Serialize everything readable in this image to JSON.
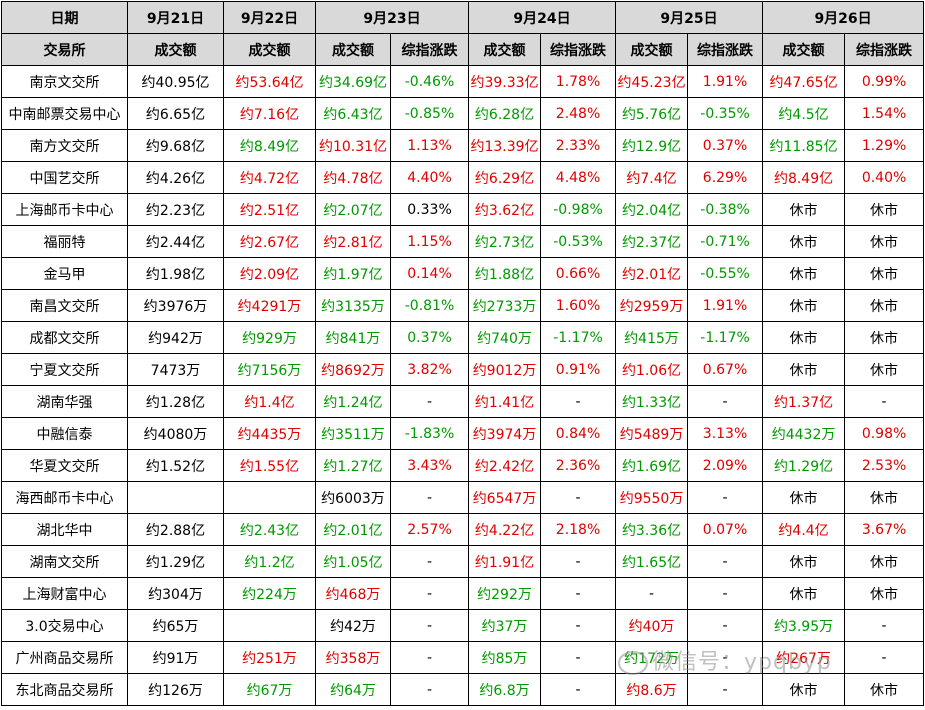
{
  "colors": {
    "black": "#000000",
    "red": "#e00000",
    "green": "#009900",
    "header_bg": "#d9d9d9"
  },
  "header": {
    "date_label": "日期",
    "dates": [
      "9月21日",
      "9月22日",
      "9月23日",
      "9月24日",
      "9月25日",
      "9月26日"
    ],
    "exchange_label": "交易所",
    "volume_label": "成交额",
    "change_label": "综指涨跌"
  },
  "rows": [
    {
      "name": "南京文交所",
      "cells": [
        [
          "约40.95亿",
          "black"
        ],
        [
          "约53.64亿",
          "red"
        ],
        [
          "约34.69亿",
          "green"
        ],
        [
          "-0.46%",
          "green"
        ],
        [
          "约39.33亿",
          "red"
        ],
        [
          "1.78%",
          "red"
        ],
        [
          "约45.23亿",
          "red"
        ],
        [
          "1.91%",
          "red"
        ],
        [
          "约47.65亿",
          "red"
        ],
        [
          "0.99%",
          "red"
        ]
      ]
    },
    {
      "name": "中南邮票交易中心",
      "cells": [
        [
          "约6.65亿",
          "black"
        ],
        [
          "约7.16亿",
          "red"
        ],
        [
          "约6.43亿",
          "green"
        ],
        [
          "-0.85%",
          "green"
        ],
        [
          "约6.28亿",
          "green"
        ],
        [
          "2.48%",
          "red"
        ],
        [
          "约5.76亿",
          "green"
        ],
        [
          "-0.35%",
          "green"
        ],
        [
          "约4.5亿",
          "green"
        ],
        [
          "1.54%",
          "red"
        ]
      ]
    },
    {
      "name": "南方文交所",
      "cells": [
        [
          "约9.68亿",
          "black"
        ],
        [
          "约8.49亿",
          "green"
        ],
        [
          "约10.31亿",
          "red"
        ],
        [
          "1.13%",
          "red"
        ],
        [
          "约13.39亿",
          "red"
        ],
        [
          "2.33%",
          "red"
        ],
        [
          "约12.9亿",
          "green"
        ],
        [
          "0.37%",
          "red"
        ],
        [
          "约11.85亿",
          "green"
        ],
        [
          "1.29%",
          "red"
        ]
      ]
    },
    {
      "name": "中国艺交所",
      "cells": [
        [
          "约4.26亿",
          "black"
        ],
        [
          "约4.72亿",
          "red"
        ],
        [
          "约4.78亿",
          "red"
        ],
        [
          "4.40%",
          "red"
        ],
        [
          "约6.29亿",
          "red"
        ],
        [
          "4.48%",
          "red"
        ],
        [
          "约7.4亿",
          "red"
        ],
        [
          "6.29%",
          "red"
        ],
        [
          "约8.49亿",
          "red"
        ],
        [
          "0.40%",
          "red"
        ]
      ]
    },
    {
      "name": "上海邮币卡中心",
      "cells": [
        [
          "约2.23亿",
          "black"
        ],
        [
          "约2.51亿",
          "red"
        ],
        [
          "约2.07亿",
          "green"
        ],
        [
          "0.33%",
          "black"
        ],
        [
          "约3.62亿",
          "red"
        ],
        [
          "-0.98%",
          "green"
        ],
        [
          "约2.04亿",
          "green"
        ],
        [
          "-0.38%",
          "green"
        ],
        [
          "休市",
          "black"
        ],
        [
          "休市",
          "black"
        ]
      ]
    },
    {
      "name": "福丽特",
      "cells": [
        [
          "约2.44亿",
          "black"
        ],
        [
          "约2.67亿",
          "red"
        ],
        [
          "约2.81亿",
          "red"
        ],
        [
          "1.15%",
          "red"
        ],
        [
          "约2.73亿",
          "green"
        ],
        [
          "-0.53%",
          "green"
        ],
        [
          "约2.37亿",
          "green"
        ],
        [
          "-0.71%",
          "green"
        ],
        [
          "休市",
          "black"
        ],
        [
          "休市",
          "black"
        ]
      ]
    },
    {
      "name": "金马甲",
      "cells": [
        [
          "约1.98亿",
          "black"
        ],
        [
          "约2.09亿",
          "red"
        ],
        [
          "约1.97亿",
          "green"
        ],
        [
          "0.14%",
          "red"
        ],
        [
          "约1.88亿",
          "green"
        ],
        [
          "0.66%",
          "red"
        ],
        [
          "约2.01亿",
          "red"
        ],
        [
          "-0.55%",
          "green"
        ],
        [
          "休市",
          "black"
        ],
        [
          "休市",
          "black"
        ]
      ]
    },
    {
      "name": "南昌文交所",
      "cells": [
        [
          "约3976万",
          "black"
        ],
        [
          "约4291万",
          "red"
        ],
        [
          "约3135万",
          "green"
        ],
        [
          "-0.81%",
          "green"
        ],
        [
          "约2733万",
          "green"
        ],
        [
          "1.60%",
          "red"
        ],
        [
          "约2959万",
          "red"
        ],
        [
          "1.91%",
          "red"
        ],
        [
          "休市",
          "black"
        ],
        [
          "休市",
          "black"
        ]
      ]
    },
    {
      "name": "成都文交所",
      "cells": [
        [
          "约942万",
          "black"
        ],
        [
          "约929万",
          "green"
        ],
        [
          "约841万",
          "green"
        ],
        [
          "0.37%",
          "green"
        ],
        [
          "约740万",
          "green"
        ],
        [
          "-1.17%",
          "green"
        ],
        [
          "约415万",
          "green"
        ],
        [
          "-1.17%",
          "green"
        ],
        [
          "休市",
          "black"
        ],
        [
          "休市",
          "black"
        ]
      ]
    },
    {
      "name": "宁夏文交所",
      "cells": [
        [
          "7473万",
          "black"
        ],
        [
          "约7156万",
          "green"
        ],
        [
          "约8692万",
          "red"
        ],
        [
          "3.82%",
          "red"
        ],
        [
          "约9012万",
          "red"
        ],
        [
          "0.91%",
          "red"
        ],
        [
          "约1.06亿",
          "red"
        ],
        [
          "0.67%",
          "red"
        ],
        [
          "休市",
          "black"
        ],
        [
          "休市",
          "black"
        ]
      ]
    },
    {
      "name": "湖南华强",
      "cells": [
        [
          "约1.28亿",
          "black"
        ],
        [
          "约1.4亿",
          "red"
        ],
        [
          "约1.24亿",
          "green"
        ],
        [
          "-",
          "black"
        ],
        [
          "约1.41亿",
          "red"
        ],
        [
          "-",
          "black"
        ],
        [
          "约1.33亿",
          "green"
        ],
        [
          "-",
          "black"
        ],
        [
          "约1.37亿",
          "red"
        ],
        [
          "-",
          "black"
        ]
      ]
    },
    {
      "name": "中融信泰",
      "cells": [
        [
          "约4080万",
          "black"
        ],
        [
          "约4435万",
          "red"
        ],
        [
          "约3511万",
          "green"
        ],
        [
          "-1.83%",
          "green"
        ],
        [
          "约3974万",
          "red"
        ],
        [
          "0.84%",
          "red"
        ],
        [
          "约5489万",
          "red"
        ],
        [
          "3.13%",
          "red"
        ],
        [
          "约4432万",
          "green"
        ],
        [
          "0.98%",
          "red"
        ]
      ]
    },
    {
      "name": "华夏文交所",
      "cells": [
        [
          "约1.52亿",
          "black"
        ],
        [
          "约1.55亿",
          "red"
        ],
        [
          "约1.27亿",
          "green"
        ],
        [
          "3.43%",
          "red"
        ],
        [
          "约2.42亿",
          "red"
        ],
        [
          "2.36%",
          "red"
        ],
        [
          "约1.69亿",
          "green"
        ],
        [
          "2.09%",
          "red"
        ],
        [
          "约1.29亿",
          "green"
        ],
        [
          "2.53%",
          "red"
        ]
      ]
    },
    {
      "name": "海西邮币卡中心",
      "cells": [
        [
          "",
          "black"
        ],
        [
          "",
          "black"
        ],
        [
          "约6003万",
          "black"
        ],
        [
          "-",
          "black"
        ],
        [
          "约6547万",
          "red"
        ],
        [
          "-",
          "black"
        ],
        [
          "约9550万",
          "red"
        ],
        [
          "-",
          "black"
        ],
        [
          "休市",
          "black"
        ],
        [
          "休市",
          "black"
        ]
      ]
    },
    {
      "name": "湖北华中",
      "cells": [
        [
          "约2.88亿",
          "black"
        ],
        [
          "约2.43亿",
          "green"
        ],
        [
          "约2.01亿",
          "green"
        ],
        [
          "2.57%",
          "red"
        ],
        [
          "约4.22亿",
          "red"
        ],
        [
          "2.18%",
          "red"
        ],
        [
          "约3.36亿",
          "green"
        ],
        [
          "0.07%",
          "red"
        ],
        [
          "约4.4亿",
          "red"
        ],
        [
          "3.67%",
          "red"
        ]
      ]
    },
    {
      "name": "湖南文交所",
      "cells": [
        [
          "约1.29亿",
          "black"
        ],
        [
          "约1.2亿",
          "green"
        ],
        [
          "约1.05亿",
          "green"
        ],
        [
          "-",
          "black"
        ],
        [
          "约1.91亿",
          "red"
        ],
        [
          "-",
          "black"
        ],
        [
          "约1.65亿",
          "green"
        ],
        [
          "-",
          "black"
        ],
        [
          "休市",
          "black"
        ],
        [
          "休市",
          "black"
        ]
      ]
    },
    {
      "name": "上海财富中心",
      "cells": [
        [
          "约304万",
          "black"
        ],
        [
          "约224万",
          "green"
        ],
        [
          "约468万",
          "red"
        ],
        [
          "-",
          "black"
        ],
        [
          "约292万",
          "green"
        ],
        [
          "-",
          "black"
        ],
        [
          "-",
          "black"
        ],
        [
          "-",
          "black"
        ],
        [
          "休市",
          "black"
        ],
        [
          "休市",
          "black"
        ]
      ]
    },
    {
      "name": "3.0交易中心",
      "cells": [
        [
          "约65万",
          "black"
        ],
        [
          "",
          "black"
        ],
        [
          "约42万",
          "black"
        ],
        [
          "-",
          "black"
        ],
        [
          "约37万",
          "green"
        ],
        [
          "-",
          "black"
        ],
        [
          "约40万",
          "red"
        ],
        [
          "-",
          "black"
        ],
        [
          "约3.95万",
          "green"
        ],
        [
          "-",
          "black"
        ]
      ]
    },
    {
      "name": "广州商品交易所",
      "cells": [
        [
          "约91万",
          "black"
        ],
        [
          "约251万",
          "red"
        ],
        [
          "约358万",
          "red"
        ],
        [
          "-",
          "black"
        ],
        [
          "约85万",
          "green"
        ],
        [
          "-",
          "black"
        ],
        [
          "约172万",
          "green"
        ],
        [
          "-",
          "black"
        ],
        [
          "约267万",
          "red"
        ],
        [
          "-",
          "black"
        ]
      ]
    },
    {
      "name": "东北商品交易所",
      "cells": [
        [
          "约126万",
          "black"
        ],
        [
          "约67万",
          "green"
        ],
        [
          "约64万",
          "green"
        ],
        [
          "-",
          "black"
        ],
        [
          "约6.8万",
          "green"
        ],
        [
          "-",
          "black"
        ],
        [
          "约8.6万",
          "red"
        ],
        [
          "-",
          "black"
        ],
        [
          "休市",
          "black"
        ],
        [
          "休市",
          "black"
        ]
      ]
    }
  ],
  "watermark": "微信号：ypqbyp"
}
